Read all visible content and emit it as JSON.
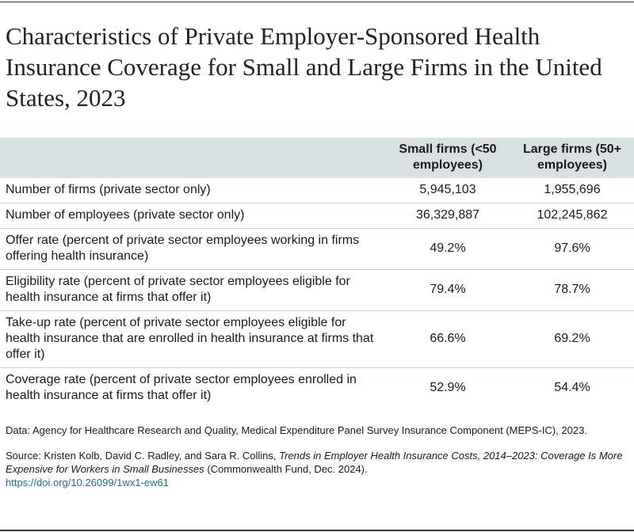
{
  "title": "Characteristics of Private Employer-Sponsored Health Insurance Coverage for Small and Large Firms in the United States, 2023",
  "chart_data": {
    "type": "table",
    "columns": [
      "",
      "Small firms (<50 employees)",
      "Large firms (50+ employees)"
    ],
    "rows": [
      {
        "label": "Number of firms (private sector only)",
        "values": [
          "5,945,103",
          "1,955,696"
        ]
      },
      {
        "label": "Number of employees (private sector only)",
        "values": [
          "36,329,887",
          "102,245,862"
        ]
      },
      {
        "label": "Offer rate (percent of private sector employees working in firms offering health insurance)",
        "values": [
          "49.2%",
          "97.6%"
        ]
      },
      {
        "label": "Eligibility rate (percent of private sector employees eligible for health insurance at firms that offer it)",
        "values": [
          "79.4%",
          "78.7%"
        ]
      },
      {
        "label": "Take-up rate (percent of private sector employees eligible for health insurance that are enrolled in health insurance at firms that offer it)",
        "values": [
          "66.6%",
          "69.2%"
        ]
      },
      {
        "label": "Coverage rate (percent of private sector employees enrolled in health insurance at firms that offer it)",
        "values": [
          "52.9%",
          "54.4%"
        ]
      }
    ]
  },
  "notes": {
    "data": "Data: Agency for Healthcare Research and Quality, Medical Expenditure Panel Survey Insurance Component (MEPS-IC), 2023.",
    "source_prefix": "Source: Kristen Kolb, David C. Radley, and Sara R. Collins, ",
    "source_title": "Trends in Employer Health Insurance Costs, 2014–2023: Coverage Is More Expensive for Workers in Small Businesses",
    "source_suffix": " (Commonwealth Fund, Dec. 2024).",
    "doi": "https://doi.org/10.26099/1wx1-ew61"
  },
  "colors": {
    "header_bg": "#d9e0e4",
    "link": "#1a6e9b"
  }
}
